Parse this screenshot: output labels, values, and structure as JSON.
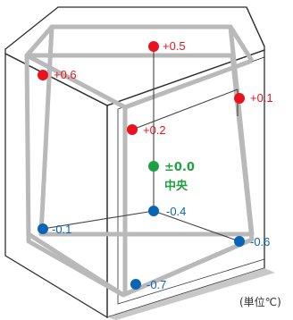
{
  "colors": {
    "warm": "#e8131f",
    "cool": "#0a64b4",
    "center": "#20a040",
    "inner_frame": "#b9b9b9",
    "outer_line": "#2f2f2f",
    "base_shade": "#c8c8c8",
    "leader": "#444444"
  },
  "unit_label": "(単位℃)",
  "points": [
    {
      "id": "top-back",
      "value": "+0.5",
      "tone": "warm"
    },
    {
      "id": "top-left",
      "value": "+0.6",
      "tone": "warm"
    },
    {
      "id": "top-right",
      "value": "+0.1",
      "tone": "warm"
    },
    {
      "id": "top-front",
      "value": "+0.2",
      "tone": "warm"
    },
    {
      "id": "center",
      "value": "±0.0",
      "sublabel": "中央",
      "tone": "center"
    },
    {
      "id": "bottom-back",
      "value": "-0.4",
      "tone": "cool"
    },
    {
      "id": "bottom-left",
      "value": "-0.1",
      "tone": "cool"
    },
    {
      "id": "bottom-right",
      "value": "-0.6",
      "tone": "cool"
    },
    {
      "id": "bottom-front",
      "value": "-0.7",
      "tone": "cool"
    }
  ]
}
